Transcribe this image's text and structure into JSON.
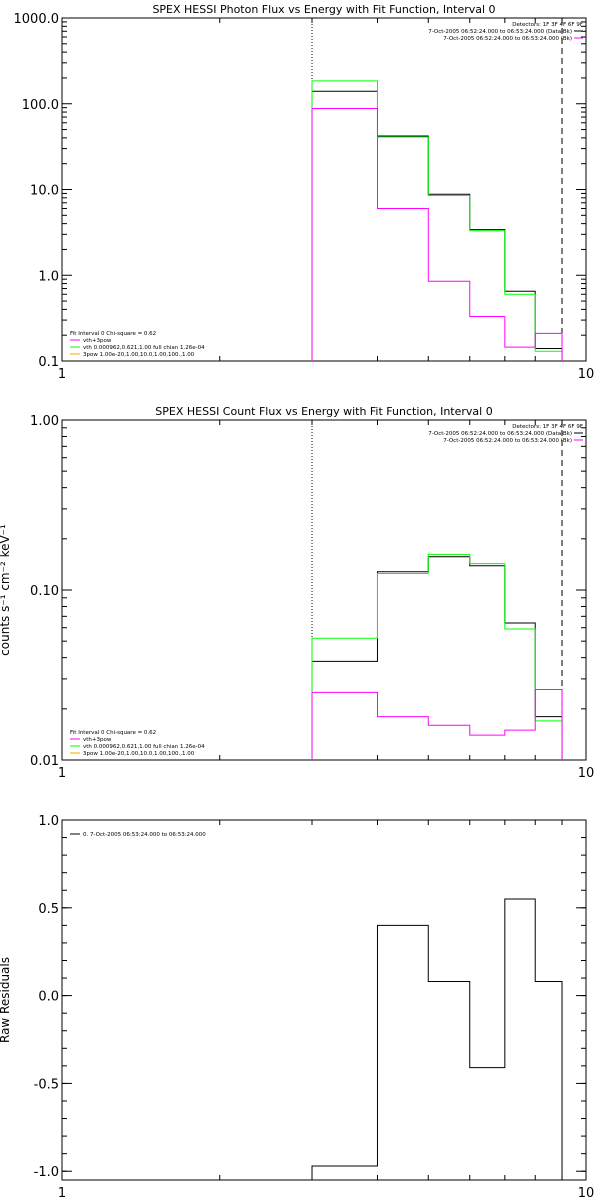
{
  "chart_data": [
    {
      "type": "line",
      "title": "SPEX HESSI Photon Flux vs Energy with Fit Function, Interval 0",
      "ylabel": "",
      "xlabel": "",
      "x_scale": "log",
      "y_scale": "log",
      "xlim": [
        1,
        10
      ],
      "ylim": [
        0.1,
        1000
      ],
      "x_ticks": [
        {
          "value": 1,
          "label": "1"
        },
        {
          "value": 10,
          "label": "10"
        }
      ],
      "y_ticks": [
        {
          "value": 0.1,
          "label": "0.1"
        },
        {
          "value": 1,
          "label": "1.0"
        },
        {
          "value": 10,
          "label": "10.0"
        },
        {
          "value": 100,
          "label": "100.0"
        },
        {
          "value": 1000,
          "label": "1000.0"
        }
      ],
      "vlines": [
        {
          "x": 3.0,
          "style": "dotted",
          "color": "#000000"
        },
        {
          "x": 9.0,
          "style": "dashed",
          "color": "#000000"
        }
      ],
      "legend_top": [
        {
          "text": "Detectors: 1F 3F 4F 6F 9F",
          "color": null
        },
        {
          "text": "7-Oct-2005 06:52:24.000 to 06:53:24.000 (Data-Bk)",
          "color": "#000000"
        },
        {
          "text": "7-Oct-2005 06:52:24.000 to 06:53:24.000 (Bk)",
          "color": "#ff00ff"
        }
      ],
      "legend_bottom": [
        {
          "text": "Fit Interval 0   Chi-square = 0.62",
          "color": null
        },
        {
          "text": "vth+3pow",
          "color": "#ff00ff"
        },
        {
          "text": "vth 0.000962,0.621,1.00   full chian 1.26e-04",
          "color": "#00ff00"
        },
        {
          "text": "3pow 1.00e-20,1.00,10.0,1.00,100.,1.00",
          "color": "#ffaa00"
        }
      ],
      "edges": [
        3.0,
        4.0,
        5.0,
        6.0,
        7.0,
        8.0,
        9.0
      ],
      "series": [
        {
          "color": "#000000",
          "values": [
            140,
            42,
            8.8,
            3.4,
            0.65,
            0.14
          ]
        },
        {
          "color": "#00ff00",
          "values": [
            185,
            41,
            8.5,
            3.3,
            0.6,
            0.13
          ]
        },
        {
          "color": "#ff00ff",
          "values": [
            88,
            6.0,
            0.85,
            0.33,
            0.145,
            0.21
          ]
        }
      ]
    },
    {
      "type": "line",
      "title": "SPEX HESSI Count Flux vs Energy with Fit Function, Interval 0",
      "ylabel": "counts s⁻¹ cm⁻² keV⁻¹",
      "xlabel": "",
      "x_scale": "log",
      "y_scale": "log",
      "xlim": [
        1,
        10
      ],
      "ylim": [
        0.01,
        1.0
      ],
      "x_ticks": [
        {
          "value": 1,
          "label": "1"
        },
        {
          "value": 10,
          "label": "10"
        }
      ],
      "y_ticks": [
        {
          "value": 0.01,
          "label": "0.01"
        },
        {
          "value": 0.1,
          "label": "0.10"
        },
        {
          "value": 1.0,
          "label": "1.00"
        }
      ],
      "vlines": [
        {
          "x": 3.0,
          "style": "dotted",
          "color": "#000000"
        },
        {
          "x": 9.0,
          "style": "dashed",
          "color": "#000000"
        }
      ],
      "legend_top": [
        {
          "text": "Detectors: 1F 3F 4F 6F 9F",
          "color": null
        },
        {
          "text": "7-Oct-2005 06:52:24.000 to 06:53:24.000 (Data-Bk)",
          "color": "#000000"
        },
        {
          "text": "7-Oct-2005 06:52:24.000 to 06:53:24.000 (Bk)",
          "color": "#ff00ff"
        }
      ],
      "legend_bottom": [
        {
          "text": "Fit Interval 0   Chi-square = 0.62",
          "color": null
        },
        {
          "text": "vth+3pow",
          "color": "#ff00ff"
        },
        {
          "text": "vth 0.000962,0.621,1.00   full chian 1.26e-04",
          "color": "#00ff00"
        },
        {
          "text": "3pow 1.00e-20,1.00,10.0,1.00,100.,1.00",
          "color": "#ffaa00"
        }
      ],
      "edges": [
        3.0,
        4.0,
        5.0,
        6.0,
        7.0,
        8.0,
        9.0
      ],
      "series": [
        {
          "color": "#000000",
          "values": [
            0.038,
            0.128,
            0.157,
            0.139,
            0.064,
            0.018
          ]
        },
        {
          "color": "#00ff00",
          "values": [
            0.052,
            0.125,
            0.162,
            0.143,
            0.059,
            0.017
          ]
        },
        {
          "color": "#ff00ff",
          "values": [
            0.025,
            0.018,
            0.016,
            0.014,
            0.015,
            0.026
          ]
        }
      ]
    },
    {
      "type": "line",
      "title": "",
      "ylabel": "Raw Residuals",
      "xlabel": "",
      "x_scale": "log",
      "y_scale": "linear",
      "xlim": [
        1,
        10
      ],
      "ylim": [
        -1.05,
        1.0
      ],
      "x_ticks": [
        {
          "value": 1,
          "label": "1"
        },
        {
          "value": 10,
          "label": "10"
        }
      ],
      "y_ticks": [
        {
          "value": -1.0,
          "label": "-1.0"
        },
        {
          "value": -0.5,
          "label": "-0.5"
        },
        {
          "value": 0.0,
          "label": "0.0"
        },
        {
          "value": 0.5,
          "label": "0.5"
        },
        {
          "value": 1.0,
          "label": "1.0"
        }
      ],
      "vlines": [],
      "legend_top": [],
      "legend_bottom": [],
      "legend_left": [
        {
          "text": "0.  7-Oct-2005 06:53:24.000 to 06:53:24.000",
          "color": "#000000"
        }
      ],
      "edges": [
        3.0,
        4.0,
        5.0,
        6.0,
        7.0,
        8.0,
        9.0
      ],
      "series": [
        {
          "color": "#000000",
          "values": [
            -0.97,
            0.4,
            0.08,
            -0.41,
            0.55,
            0.08
          ]
        }
      ]
    }
  ]
}
